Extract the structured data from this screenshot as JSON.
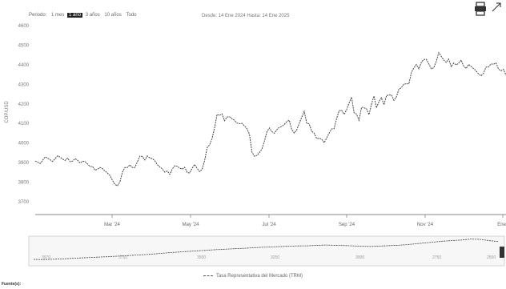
{
  "controls": {
    "range_label": "Periodo:",
    "range_options": [
      "1 mes",
      "1 año",
      "3 años",
      "10 años",
      "Todo"
    ],
    "selected_index": 1,
    "date_from_label": "Desde:",
    "date_from": "14 Ene 2024",
    "date_to_label": "Hasta:",
    "date_to": "14 Ene 2025"
  },
  "legend": {
    "label": "Tasa Representativa del Mercado (TRM)"
  },
  "source": {
    "label": "Fuente(s):"
  },
  "chart_data": {
    "type": "line",
    "title": "",
    "xlabel": "",
    "ylabel": "COP/USD",
    "x_ticks": [
      "Mar '24",
      "May '24",
      "Jul '24",
      "Sep '24",
      "Nov '24",
      "Ene '"
    ],
    "ylim": [
      3700,
      4600
    ],
    "y_ticks": [
      "4600",
      "4500",
      "4400",
      "4300",
      "4200",
      "4100",
      "4000",
      "3900",
      "3800",
      "3700"
    ],
    "grid": false,
    "legend_position": "bottom",
    "series": [
      {
        "name": "Tasa Representativa del Mercado (TRM)",
        "color": "#444444",
        "values": [
          3908,
          3902,
          3895,
          3912,
          3929,
          3922,
          3914,
          3906,
          3921,
          3935,
          3928,
          3918,
          3911,
          3923,
          3905,
          3908,
          3920,
          3912,
          3898,
          3907,
          3905,
          3893,
          3880,
          3880,
          3861,
          3866,
          3875,
          3869,
          3857,
          3847,
          3834,
          3810,
          3788,
          3782,
          3801,
          3851,
          3875,
          3875,
          3888,
          3875,
          3875,
          3904,
          3933,
          3931,
          3913,
          3934,
          3924,
          3920,
          3910,
          3890,
          3878,
          3868,
          3851,
          3857,
          3840,
          3866,
          3884,
          3881,
          3872,
          3867,
          3876,
          3850,
          3847,
          3871,
          3891,
          3871,
          3854,
          3865,
          3911,
          3976,
          3991,
          4023,
          4077,
          4146,
          4141,
          4149,
          4114,
          4133,
          4134,
          4124,
          4116,
          4102,
          4099,
          4101,
          4088,
          4074,
          4044,
          3954,
          3932,
          3937,
          3951,
          3969,
          4009,
          4056,
          4077,
          4058,
          4050,
          4068,
          4080,
          4085,
          4095,
          4110,
          4116,
          4068,
          4051,
          4068,
          4100,
          4133,
          4162,
          4101,
          4098,
          4060,
          4050,
          4022,
          4025,
          4019,
          4002,
          4026,
          4050,
          4072,
          4074,
          4125,
          4165,
          4167,
          4147,
          4170,
          4204,
          4235,
          4155,
          4148,
          4116,
          4183,
          4180,
          4175,
          4145,
          4198,
          4241,
          4180,
          4211,
          4232,
          4195,
          4243,
          4245,
          4246,
          4218,
          4236,
          4275,
          4283,
          4301,
          4303,
          4302,
          4360,
          4384,
          4401,
          4379,
          4412,
          4427,
          4428,
          4405,
          4379,
          4385,
          4417,
          4462,
          4443,
          4425,
          4412,
          4429,
          4390,
          4409,
          4399,
          4408,
          4424,
          4393,
          4381,
          4402,
          4391,
          4380,
          4368,
          4353,
          4343,
          4358,
          4388,
          4388,
          4404,
          4403,
          4409,
          4377,
          4369,
          4377,
          4346
        ]
      }
    ],
    "navigator": {
      "y_ticks": [
        "3970",
        "3750",
        "3500",
        "3250",
        "3000",
        "2750",
        "2500"
      ],
      "values": [
        2880,
        2860,
        2890,
        2920,
        2950,
        2990,
        3020,
        3060,
        3090,
        3130,
        3170,
        3210,
        3250,
        3300,
        3360,
        3420,
        3470,
        3520,
        3560,
        3610,
        3650,
        3690,
        3730,
        3760,
        3800,
        3840,
        3870,
        3900,
        3930,
        3950,
        3960,
        3990,
        4020,
        4000,
        3980,
        3960,
        3930,
        3910,
        3940,
        3970,
        4000,
        4050,
        4120,
        4190,
        4260,
        4330,
        4380,
        4420,
        4500,
        4470,
        4380,
        4300
      ]
    }
  }
}
